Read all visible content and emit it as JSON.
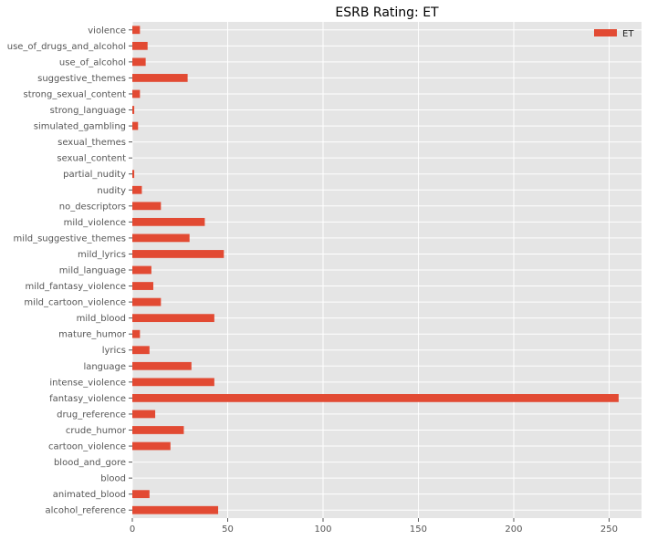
{
  "chart_data": {
    "type": "bar",
    "orientation": "horizontal",
    "title": "ESRB Rating: ET",
    "xlabel": "",
    "ylabel": "",
    "xlim": [
      0,
      267
    ],
    "x_ticks": [
      0,
      50,
      100,
      150,
      200,
      250
    ],
    "grid": true,
    "legend_position": "top-right",
    "categories": [
      "alcohol_reference",
      "animated_blood",
      "blood",
      "blood_and_gore",
      "cartoon_violence",
      "crude_humor",
      "drug_reference",
      "fantasy_violence",
      "intense_violence",
      "language",
      "lyrics",
      "mature_humor",
      "mild_blood",
      "mild_cartoon_violence",
      "mild_fantasy_violence",
      "mild_language",
      "mild_lyrics",
      "mild_suggestive_themes",
      "mild_violence",
      "no_descriptors",
      "nudity",
      "partial_nudity",
      "sexual_content",
      "sexual_themes",
      "simulated_gambling",
      "strong_language",
      "strong_sexual_content",
      "suggestive_themes",
      "use_of_alcohol",
      "use_of_drugs_and_alcohol",
      "violence"
    ],
    "series": [
      {
        "name": "ET",
        "color": "#E24A33",
        "values": [
          45,
          9,
          0,
          0,
          20,
          27,
          12,
          255,
          43,
          31,
          9,
          4,
          43,
          15,
          11,
          10,
          48,
          30,
          38,
          15,
          5,
          1,
          0,
          0,
          3,
          1,
          4,
          29,
          7,
          8,
          4
        ]
      }
    ]
  }
}
